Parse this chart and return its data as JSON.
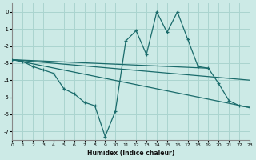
{
  "xlabel": "Humidex (Indice chaleur)",
  "background_color": "#cceae6",
  "grid_color": "#aad4cf",
  "line_color": "#1a6b6b",
  "xlim": [
    0,
    23
  ],
  "ylim": [
    -7.5,
    0.5
  ],
  "yticks": [
    0,
    -1,
    -2,
    -3,
    -4,
    -5,
    -6,
    -7
  ],
  "xticks": [
    0,
    1,
    2,
    3,
    4,
    5,
    6,
    7,
    8,
    9,
    10,
    11,
    12,
    13,
    14,
    15,
    16,
    17,
    18,
    19,
    20,
    21,
    22,
    23
  ],
  "series": [
    {
      "x": [
        0,
        1,
        2,
        3,
        4,
        5,
        6,
        7,
        8,
        9,
        10,
        11,
        12,
        13,
        14,
        15,
        16,
        17,
        18,
        19,
        20,
        21,
        22,
        23
      ],
      "y": [
        -2.8,
        -2.9,
        -3.2,
        -3.4,
        -3.6,
        -4.5,
        -4.8,
        -5.3,
        -5.5,
        -7.3,
        -5.8,
        -1.7,
        -1.1,
        -2.5,
        0.0,
        -1.2,
        0.0,
        -1.6,
        -3.2,
        -3.3,
        -4.2,
        -5.2,
        -5.5,
        -5.6
      ],
      "marker": true
    },
    {
      "x": [
        0,
        19
      ],
      "y": [
        -2.8,
        -3.3
      ],
      "marker": false
    },
    {
      "x": [
        0,
        23
      ],
      "y": [
        -2.8,
        -4.0
      ],
      "marker": false
    },
    {
      "x": [
        0,
        23
      ],
      "y": [
        -2.8,
        -5.6
      ],
      "marker": false
    }
  ]
}
